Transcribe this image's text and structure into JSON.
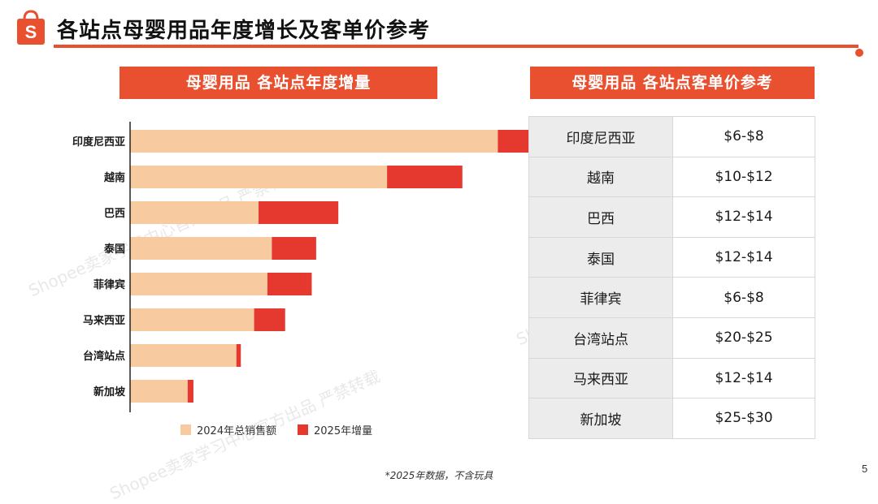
{
  "header": {
    "title": "各站点母婴用品年度增长及客单价参考",
    "logo_glyph": "S",
    "accent_color": "#e8502f"
  },
  "left_panel": {
    "banner": "母婴用品 各站点年度增量"
  },
  "right_panel": {
    "banner": "母婴用品 各站点客单价参考"
  },
  "chart_data": {
    "type": "bar",
    "orientation": "horizontal",
    "stacked": true,
    "categories": [
      "印度尼西亚",
      "越南",
      "巴西",
      "泰国",
      "菲律宾",
      "马来西亚",
      "台湾站点",
      "新加坡"
    ],
    "series": [
      {
        "name": "2024年总销售额",
        "color": "#f7caa0",
        "values": [
          83,
          58,
          29,
          32,
          31,
          28,
          24,
          13
        ]
      },
      {
        "name": "2025年增量",
        "color": "#e5392f",
        "values": [
          15,
          17,
          18,
          10,
          10,
          7,
          1,
          1.3
        ]
      }
    ],
    "xlim": [
      0,
      100
    ],
    "title": "",
    "xlabel": "",
    "ylabel": "",
    "legend_position": "bottom"
  },
  "price_table": {
    "rows": [
      {
        "site": "印度尼西亚",
        "price": "$6-$8"
      },
      {
        "site": "越南",
        "price": "$10-$12"
      },
      {
        "site": "巴西",
        "price": "$12-$14"
      },
      {
        "site": "泰国",
        "price": "$12-$14"
      },
      {
        "site": "菲律宾",
        "price": "$6-$8"
      },
      {
        "site": "台湾站点",
        "price": "$20-$25"
      },
      {
        "site": "马来西亚",
        "price": "$12-$14"
      },
      {
        "site": "新加坡",
        "price": "$25-$30"
      }
    ]
  },
  "footnote": "*2025年数据，不含玩具",
  "page_number": "5",
  "watermarks": [
    "Shopee卖家学习中心官方出品 严禁转载",
    "Shopee卖家学习中心官方出品 严禁转载",
    "Shopee卖家学习中心官方出品 严禁转载"
  ]
}
